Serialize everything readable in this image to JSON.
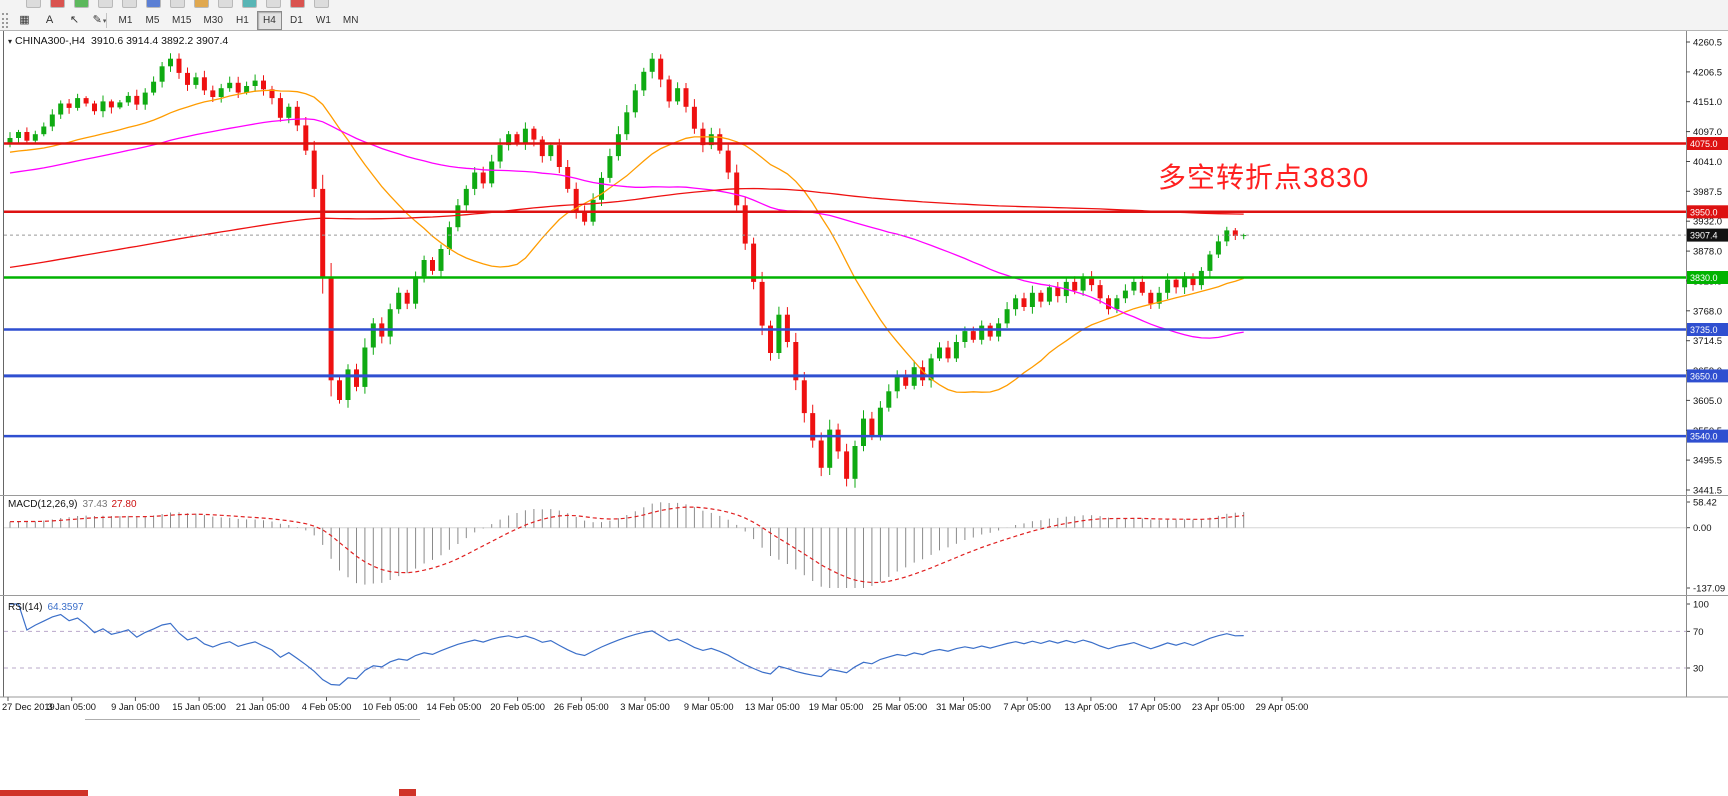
{
  "toolbar": {
    "partial_icons": [
      {
        "color": "#dcdcdc"
      },
      {
        "color": "#d9534f"
      },
      {
        "color": "#5cb85c"
      },
      {
        "color": "#dcdcdc"
      },
      {
        "color": "#dcdcdc"
      },
      {
        "color": "#5b7fd4"
      },
      {
        "color": "#dcdcdc"
      },
      {
        "color": "#e0a84f"
      },
      {
        "color": "#dcdcdc"
      },
      {
        "color": "#58b5b5"
      },
      {
        "color": "#dcdcdc"
      },
      {
        "color": "#d9534f"
      },
      {
        "color": "#dcdcdc"
      }
    ],
    "tools": [
      {
        "name": "grid-tool",
        "glyph": "▦"
      },
      {
        "name": "text-tool",
        "glyph": "A"
      },
      {
        "name": "cursor-tool",
        "glyph": "↖"
      },
      {
        "name": "draw-tool",
        "glyph": "✎",
        "caret": true
      }
    ],
    "periods": [
      {
        "label": "M1",
        "active": false
      },
      {
        "label": "M5",
        "active": false
      },
      {
        "label": "M15",
        "active": false
      },
      {
        "label": "M30",
        "active": false
      },
      {
        "label": "H1",
        "active": false
      },
      {
        "label": "H4",
        "active": true
      },
      {
        "label": "D1",
        "active": false
      },
      {
        "label": "W1",
        "active": false
      },
      {
        "label": "MN",
        "active": false
      }
    ]
  },
  "chart": {
    "title_symbol": "CHINA300-,H4",
    "title_ohlc": "3910.6 3914.4 3892.2 3907.4",
    "annotation": {
      "text": "多空转折点3830",
      "color": "#ff2020"
    }
  },
  "macd": {
    "label": "MACD(12,26,9)",
    "value_main": "37.43",
    "value_signal": "27.80",
    "axis": [
      "58.42",
      "0.00",
      "-137.09"
    ]
  },
  "rsi": {
    "label": "RSI(14)",
    "value": "64.3597",
    "axis": [
      "100",
      "70",
      "30"
    ]
  },
  "chart_data": {
    "type": "candlestick",
    "symbol": "CHINA300-",
    "timeframe": "H4",
    "ohlc_current": {
      "open": 3910.6,
      "high": 3914.4,
      "low": 3892.2,
      "close": 3907.4
    },
    "price_range": {
      "top": 4260.5,
      "bottom": 3441.5
    },
    "y_axis_labels": [
      "4260.5",
      "4206.5",
      "4151.0",
      "4097.0",
      "4041.0",
      "3987.5",
      "3932.0",
      "3878.0",
      "3823.5",
      "3768.0",
      "3714.5",
      "3659.0",
      "3605.0",
      "3550.5",
      "3495.5",
      "3441.5"
    ],
    "x_labels": [
      "27 Dec 2019",
      "3 Jan 05:00",
      "9 Jan 05:00",
      "15 Jan 05:00",
      "21 Jan 05:00",
      "4 Feb 05:00",
      "10 Feb 05:00",
      "14 Feb 05:00",
      "20 Feb 05:00",
      "26 Feb 05:00",
      "3 Mar 05:00",
      "9 Mar 05:00",
      "13 Mar 05:00",
      "19 Mar 05:00",
      "25 Mar 05:00",
      "31 Mar 05:00",
      "7 Apr 05:00",
      "13 Apr 05:00",
      "17 Apr 05:00",
      "23 Apr 05:00",
      "29 Apr 05:00"
    ],
    "closes": [
      4085,
      4096,
      4080,
      4092,
      4106,
      4128,
      4148,
      4140,
      4158,
      4148,
      4134,
      4152,
      4141,
      4150,
      4162,
      4146,
      4168,
      4188,
      4216,
      4230,
      4204,
      4182,
      4196,
      4172,
      4160,
      4176,
      4186,
      4168,
      4180,
      4190,
      4174,
      4158,
      4122,
      4142,
      4108,
      4062,
      3992,
      3830,
      3642,
      3606,
      3662,
      3630,
      3702,
      3746,
      3722,
      3772,
      3802,
      3782,
      3832,
      3862,
      3842,
      3882,
      3922,
      3962,
      3992,
      4022,
      4002,
      4042,
      4072,
      4092,
      4076,
      4102,
      4082,
      4052,
      4072,
      4032,
      3992,
      3952,
      3932,
      3972,
      4012,
      4052,
      4092,
      4132,
      4172,
      4206,
      4230,
      4192,
      4152,
      4176,
      4142,
      4102,
      4072,
      4092,
      4062,
      4022,
      3962,
      3892,
      3822,
      3742,
      3692,
      3762,
      3712,
      3642,
      3582,
      3532,
      3482,
      3552,
      3512,
      3462,
      3522,
      3572,
      3542,
      3592,
      3622,
      3652,
      3632,
      3666,
      3642,
      3682,
      3702,
      3682,
      3712,
      3732,
      3716,
      3742,
      3722,
      3746,
      3772,
      3792,
      3776,
      3802,
      3786,
      3812,
      3796,
      3822,
      3806,
      3832,
      3816,
      3792,
      3772,
      3792,
      3806,
      3822,
      3802,
      3782,
      3802,
      3826,
      3812,
      3832,
      3816,
      3842,
      3872,
      3896,
      3916,
      3906,
      3907.4
    ],
    "seed": {
      "start": 3560,
      "end": 4085,
      "count": 220
    },
    "moving_averages": [
      {
        "period": 24,
        "color": "#ff9c00"
      },
      {
        "period": 55,
        "color": "#ff00ff"
      },
      {
        "period": 200,
        "color": "#ee1111"
      }
    ],
    "levels": [
      {
        "value": 4075.0,
        "label": "4075.0",
        "color": "#dd1111",
        "width": 2.5
      },
      {
        "value": 3950.0,
        "label": "3950.0",
        "color": "#dd1111",
        "width": 2.5
      },
      {
        "value": 3830.0,
        "label": "3830.0",
        "color": "#00b300",
        "width": 2.5
      },
      {
        "value": 3735.0,
        "label": "3735.0",
        "color": "#2f4fd0",
        "width": 2.5
      },
      {
        "value": 3650.0,
        "label": "3650.0",
        "color": "#2f4fd0",
        "width": 3
      },
      {
        "value": 3540.0,
        "label": "3540.0",
        "color": "#2f4fd0",
        "width": 2.5
      }
    ],
    "current_price": {
      "value": 3907.4,
      "label": "3907.4",
      "badge": "#111111"
    },
    "colors": {
      "up": "#0faa12",
      "down": "#ee1111",
      "macd_hist": "#8a8a8a",
      "macd_signal": "#e02020",
      "rsi_line": "#3b6fc9"
    },
    "macd": {
      "fast": 12,
      "slow": 26,
      "signal": 9,
      "range": [
        -137.09,
        58.42
      ]
    },
    "rsi": {
      "period": 14,
      "levels": [
        70,
        30
      ]
    }
  }
}
